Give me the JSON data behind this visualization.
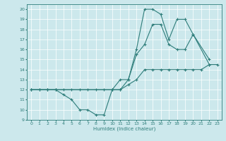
{
  "xlabel": "Humidex (Indice chaleur)",
  "xlim": [
    -0.5,
    23.5
  ],
  "ylim": [
    9,
    20.5
  ],
  "xticks": [
    0,
    1,
    2,
    3,
    4,
    5,
    6,
    7,
    8,
    9,
    10,
    11,
    12,
    13,
    14,
    15,
    16,
    17,
    18,
    19,
    20,
    21,
    22,
    23
  ],
  "yticks": [
    9,
    10,
    11,
    12,
    13,
    14,
    15,
    16,
    17,
    18,
    19,
    20
  ],
  "bg_color": "#cce8ec",
  "line_color": "#2e7d7a",
  "grid_color": "#b0d4d8",
  "lines": [
    {
      "x": [
        0,
        1,
        2,
        3,
        4,
        5,
        6,
        7,
        8,
        9,
        10,
        11,
        12,
        13,
        14,
        15,
        16,
        17,
        18,
        19,
        20,
        21,
        22,
        23
      ],
      "y": [
        12,
        12,
        12,
        12,
        12,
        12,
        12,
        12,
        12,
        12,
        12,
        12,
        12.5,
        13,
        14,
        14,
        14,
        14,
        14,
        14,
        14,
        14,
        14.5,
        14.5
      ]
    },
    {
      "x": [
        0,
        1,
        2,
        3,
        4,
        5,
        6,
        7,
        8,
        9,
        10,
        11,
        12,
        13,
        14,
        15,
        16,
        17,
        18,
        19,
        20,
        22
      ],
      "y": [
        12,
        12,
        12,
        12,
        11.5,
        11,
        10,
        10,
        9.5,
        9.5,
        12,
        13,
        13,
        16,
        20,
        20,
        19.5,
        17,
        19,
        19,
        17.5,
        15
      ]
    },
    {
      "x": [
        0,
        2,
        3,
        10,
        11,
        12,
        13,
        14,
        15,
        16,
        17,
        18,
        19,
        20,
        22
      ],
      "y": [
        12,
        12,
        12,
        12,
        12,
        13,
        15.5,
        16.5,
        18.5,
        18.5,
        16.5,
        16,
        16,
        17.5,
        14.5
      ]
    }
  ]
}
